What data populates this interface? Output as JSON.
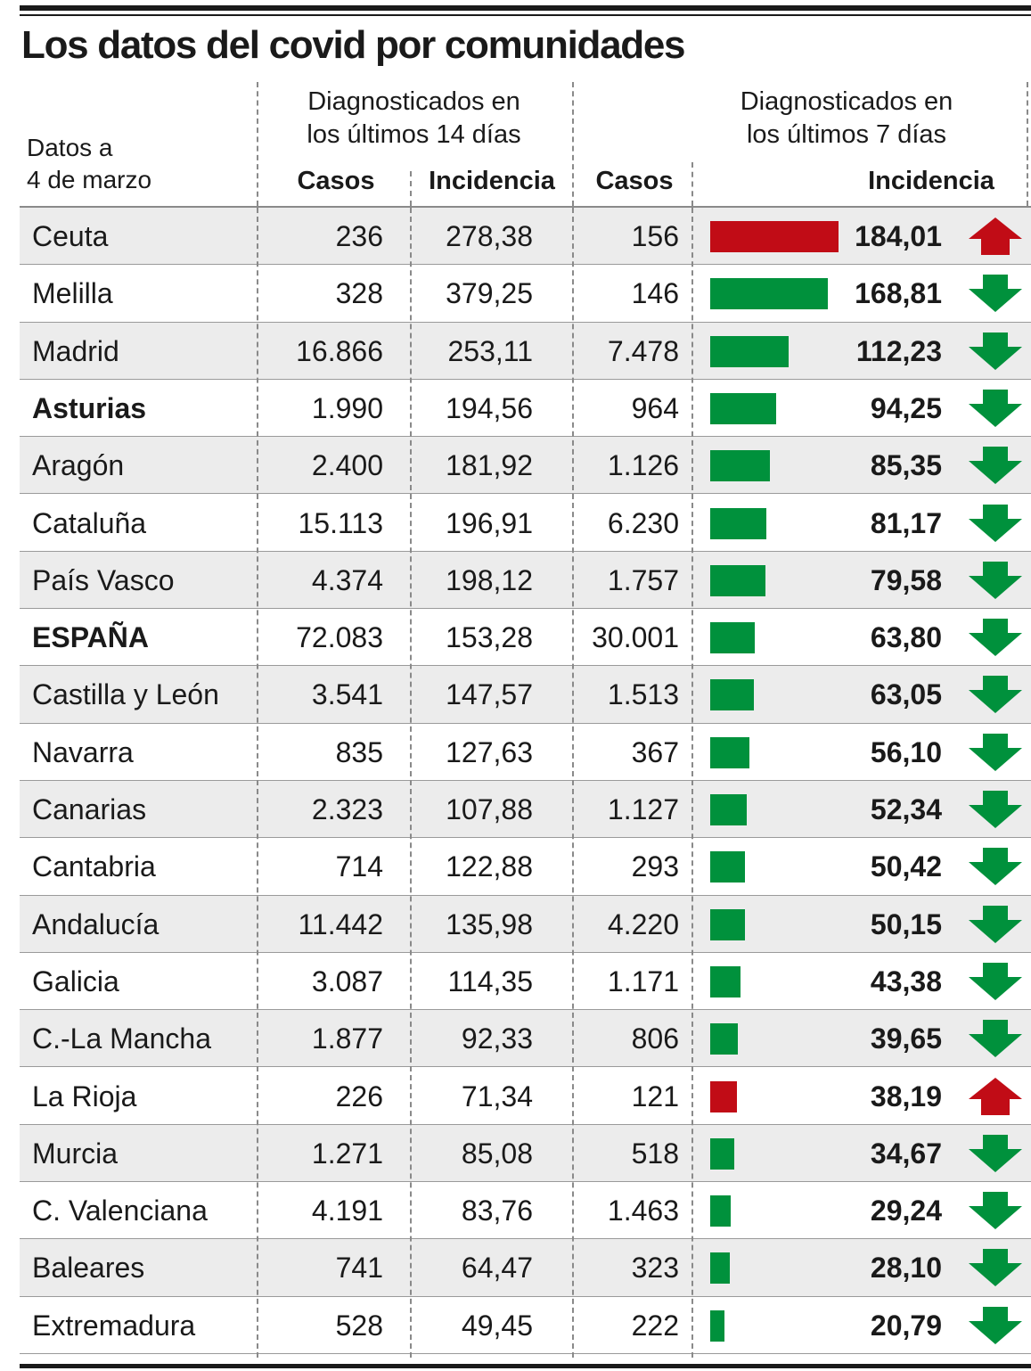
{
  "title": "Los datos del covid por comunidades",
  "date_label": "Datos a\n4 de marzo",
  "headers": {
    "group_14": "Diagnosticados en\nlos últimos 14 días",
    "group_7": "Diagnosticados en\nlos últimos 7 días",
    "casos": "Casos",
    "incidencia": "Incidencia"
  },
  "colors": {
    "up": "#c10c16",
    "down": "#00913c",
    "shade": "#ececec"
  },
  "chart_data": {
    "type": "table",
    "columns": [
      "Casos (14 días)",
      "Incidencia (14 días)",
      "Casos (7 días)",
      "Incidencia (7 días)"
    ],
    "rows": [
      {
        "name": "Ceuta",
        "bold": false,
        "casos14": "236",
        "inc14": "278,38",
        "casos7": "156",
        "inc7": "184,01",
        "inc7_value": 184.01,
        "trend": "up"
      },
      {
        "name": "Melilla",
        "bold": false,
        "casos14": "328",
        "inc14": "379,25",
        "casos7": "146",
        "inc7": "168,81",
        "inc7_value": 168.81,
        "trend": "down"
      },
      {
        "name": "Madrid",
        "bold": false,
        "casos14": "16.866",
        "inc14": "253,11",
        "casos7": "7.478",
        "inc7": "112,23",
        "inc7_value": 112.23,
        "trend": "down"
      },
      {
        "name": "Asturias",
        "bold": true,
        "casos14": "1.990",
        "inc14": "194,56",
        "casos7": "964",
        "inc7": "94,25",
        "inc7_value": 94.25,
        "trend": "down"
      },
      {
        "name": "Aragón",
        "bold": false,
        "casos14": "2.400",
        "inc14": "181,92",
        "casos7": "1.126",
        "inc7": "85,35",
        "inc7_value": 85.35,
        "trend": "down"
      },
      {
        "name": "Cataluña",
        "bold": false,
        "casos14": "15.113",
        "inc14": "196,91",
        "casos7": "6.230",
        "inc7": "81,17",
        "inc7_value": 81.17,
        "trend": "down"
      },
      {
        "name": "País Vasco",
        "bold": false,
        "casos14": "4.374",
        "inc14": "198,12",
        "casos7": "1.757",
        "inc7": "79,58",
        "inc7_value": 79.58,
        "trend": "down"
      },
      {
        "name": "ESPAÑA",
        "bold": true,
        "casos14": "72.083",
        "inc14": "153,28",
        "casos7": "30.001",
        "inc7": "63,80",
        "inc7_value": 63.8,
        "trend": "down"
      },
      {
        "name": "Castilla y León",
        "bold": false,
        "casos14": "3.541",
        "inc14": "147,57",
        "casos7": "1.513",
        "inc7": "63,05",
        "inc7_value": 63.05,
        "trend": "down"
      },
      {
        "name": "Navarra",
        "bold": false,
        "casos14": "835",
        "inc14": "127,63",
        "casos7": "367",
        "inc7": "56,10",
        "inc7_value": 56.1,
        "trend": "down"
      },
      {
        "name": "Canarias",
        "bold": false,
        "casos14": "2.323",
        "inc14": "107,88",
        "casos7": "1.127",
        "inc7": "52,34",
        "inc7_value": 52.34,
        "trend": "down"
      },
      {
        "name": "Cantabria",
        "bold": false,
        "casos14": "714",
        "inc14": "122,88",
        "casos7": "293",
        "inc7": "50,42",
        "inc7_value": 50.42,
        "trend": "down"
      },
      {
        "name": "Andalucía",
        "bold": false,
        "casos14": "11.442",
        "inc14": "135,98",
        "casos7": "4.220",
        "inc7": "50,15",
        "inc7_value": 50.15,
        "trend": "down"
      },
      {
        "name": "Galicia",
        "bold": false,
        "casos14": "3.087",
        "inc14": "114,35",
        "casos7": "1.171",
        "inc7": "43,38",
        "inc7_value": 43.38,
        "trend": "down"
      },
      {
        "name": "C.-La Mancha",
        "bold": false,
        "casos14": "1.877",
        "inc14": "92,33",
        "casos7": "806",
        "inc7": "39,65",
        "inc7_value": 39.65,
        "trend": "down"
      },
      {
        "name": "La Rioja",
        "bold": false,
        "casos14": "226",
        "inc14": "71,34",
        "casos7": "121",
        "inc7": "38,19",
        "inc7_value": 38.19,
        "trend": "up"
      },
      {
        "name": "Murcia",
        "bold": false,
        "casos14": "1.271",
        "inc14": "85,08",
        "casos7": "518",
        "inc7": "34,67",
        "inc7_value": 34.67,
        "trend": "down"
      },
      {
        "name": "C. Valenciana",
        "bold": false,
        "casos14": "4.191",
        "inc14": "83,76",
        "casos7": "1.463",
        "inc7": "29,24",
        "inc7_value": 29.24,
        "trend": "down"
      },
      {
        "name": "Baleares",
        "bold": false,
        "casos14": "741",
        "inc14": "64,47",
        "casos7": "323",
        "inc7": "28,10",
        "inc7_value": 28.1,
        "trend": "down"
      },
      {
        "name": "Extremadura",
        "bold": false,
        "casos14": "528",
        "inc14": "49,45",
        "casos7": "222",
        "inc7": "20,79",
        "inc7_value": 20.79,
        "trend": "down"
      }
    ]
  }
}
